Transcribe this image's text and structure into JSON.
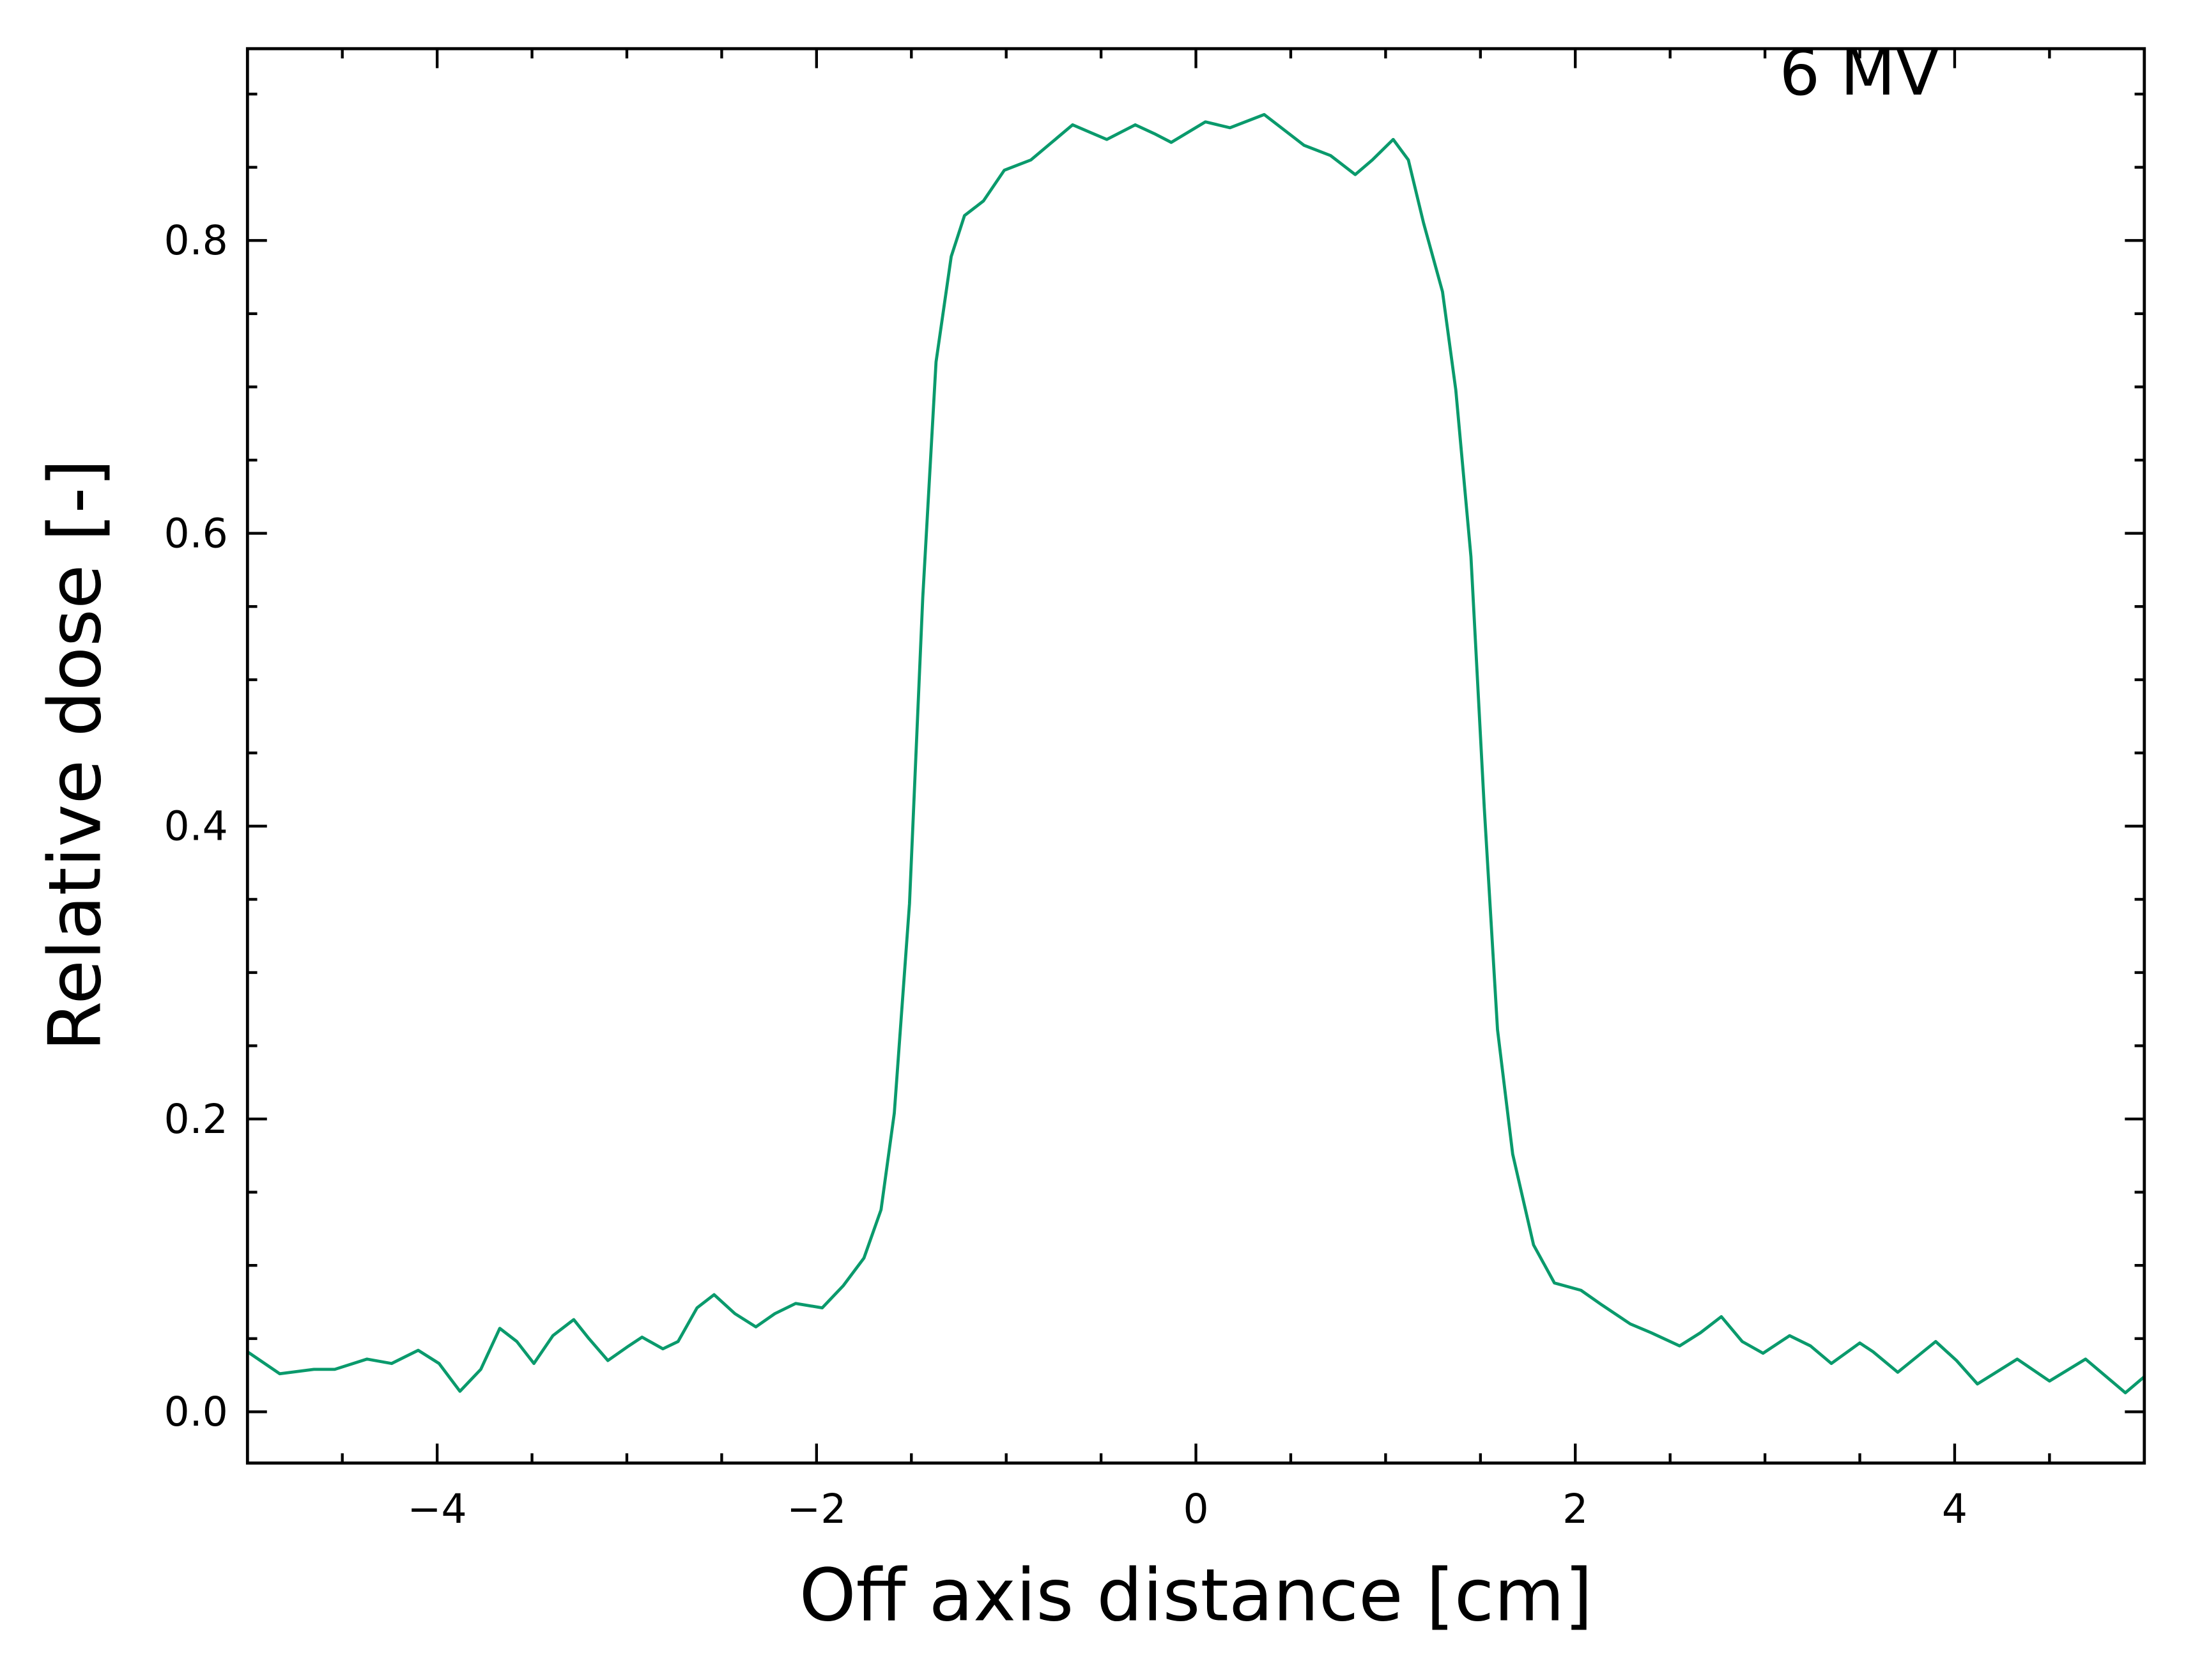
{
  "chart_data": {
    "type": "line",
    "annotation": "6 MV",
    "x_label": "Off axis distance [cm]",
    "y_label": "Relative dose [-]",
    "xlim": [
      -5,
      5
    ],
    "ylim": [
      -0.035,
      0.931
    ],
    "xticks": [
      {
        "value": -4,
        "label": "−4"
      },
      {
        "value": -2,
        "label": "−2"
      },
      0,
      2,
      4
    ],
    "yticks": [
      {
        "value": 0,
        "label": "0.0"
      },
      0.2,
      0.4,
      0.6,
      0.8
    ],
    "xminorticks": [
      -4.5,
      -3.5,
      -3,
      -2.5,
      -1.5,
      -1,
      -0.5,
      0.5,
      1,
      1.5,
      2.5,
      3,
      3.5,
      4.5
    ],
    "yminorticks": [
      0.05,
      0.1,
      0.15,
      0.25,
      0.3,
      0.35,
      0.45,
      0.5,
      0.55,
      0.65,
      0.7,
      0.75,
      0.85,
      0.9
    ],
    "ticks_direction": "in",
    "ticks_all_sides": true,
    "series": [
      {
        "color": "#0a9a6c",
        "x": [
          -5.0,
          -4.83,
          -4.65,
          -4.54,
          -4.37,
          -4.24,
          -4.1,
          -3.99,
          -3.88,
          -3.77,
          -3.67,
          -3.58,
          -3.49,
          -3.39,
          -3.28,
          -3.2,
          -3.1,
          -2.99,
          -2.92,
          -2.81,
          -2.73,
          -2.63,
          -2.54,
          -2.43,
          -2.32,
          -2.22,
          -2.11,
          -1.97,
          -1.86,
          -1.75,
          -1.66,
          -1.59,
          -1.51,
          -1.44,
          -1.37,
          -1.29,
          -1.22,
          -1.12,
          -1.01,
          -0.87,
          -0.76,
          -0.65,
          -0.56,
          -0.47,
          -0.32,
          -0.22,
          -0.13,
          0.05,
          0.18,
          0.36,
          0.57,
          0.71,
          0.84,
          0.93,
          1.04,
          1.12,
          1.2,
          1.3,
          1.37,
          1.45,
          1.52,
          1.59,
          1.67,
          1.78,
          1.89,
          2.03,
          2.14,
          2.29,
          2.4,
          2.55,
          2.66,
          2.77,
          2.88,
          2.99,
          3.13,
          3.24,
          3.35,
          3.5,
          3.57,
          3.7,
          3.9,
          4.01,
          4.12,
          4.33,
          4.5,
          4.69,
          4.9,
          5.0
        ],
        "values": [
          0.041,
          0.026,
          0.029,
          0.029,
          0.036,
          0.033,
          0.042,
          0.033,
          0.014,
          0.029,
          0.057,
          0.048,
          0.033,
          0.052,
          0.063,
          0.05,
          0.035,
          0.045,
          0.051,
          0.043,
          0.048,
          0.071,
          0.08,
          0.067,
          0.058,
          0.067,
          0.074,
          0.071,
          0.086,
          0.105,
          0.138,
          0.204,
          0.347,
          0.556,
          0.717,
          0.789,
          0.817,
          0.827,
          0.848,
          0.855,
          0.867,
          0.879,
          0.874,
          0.869,
          0.879,
          0.873,
          0.867,
          0.881,
          0.877,
          0.886,
          0.865,
          0.858,
          0.845,
          0.855,
          0.869,
          0.855,
          0.812,
          0.765,
          0.698,
          0.584,
          0.413,
          0.261,
          0.176,
          0.114,
          0.088,
          0.083,
          0.073,
          0.06,
          0.054,
          0.045,
          0.054,
          0.065,
          0.048,
          0.04,
          0.052,
          0.045,
          0.033,
          0.047,
          0.041,
          0.027,
          0.048,
          0.035,
          0.019,
          0.036,
          0.021,
          0.036,
          0.013,
          0.024
        ]
      }
    ]
  }
}
